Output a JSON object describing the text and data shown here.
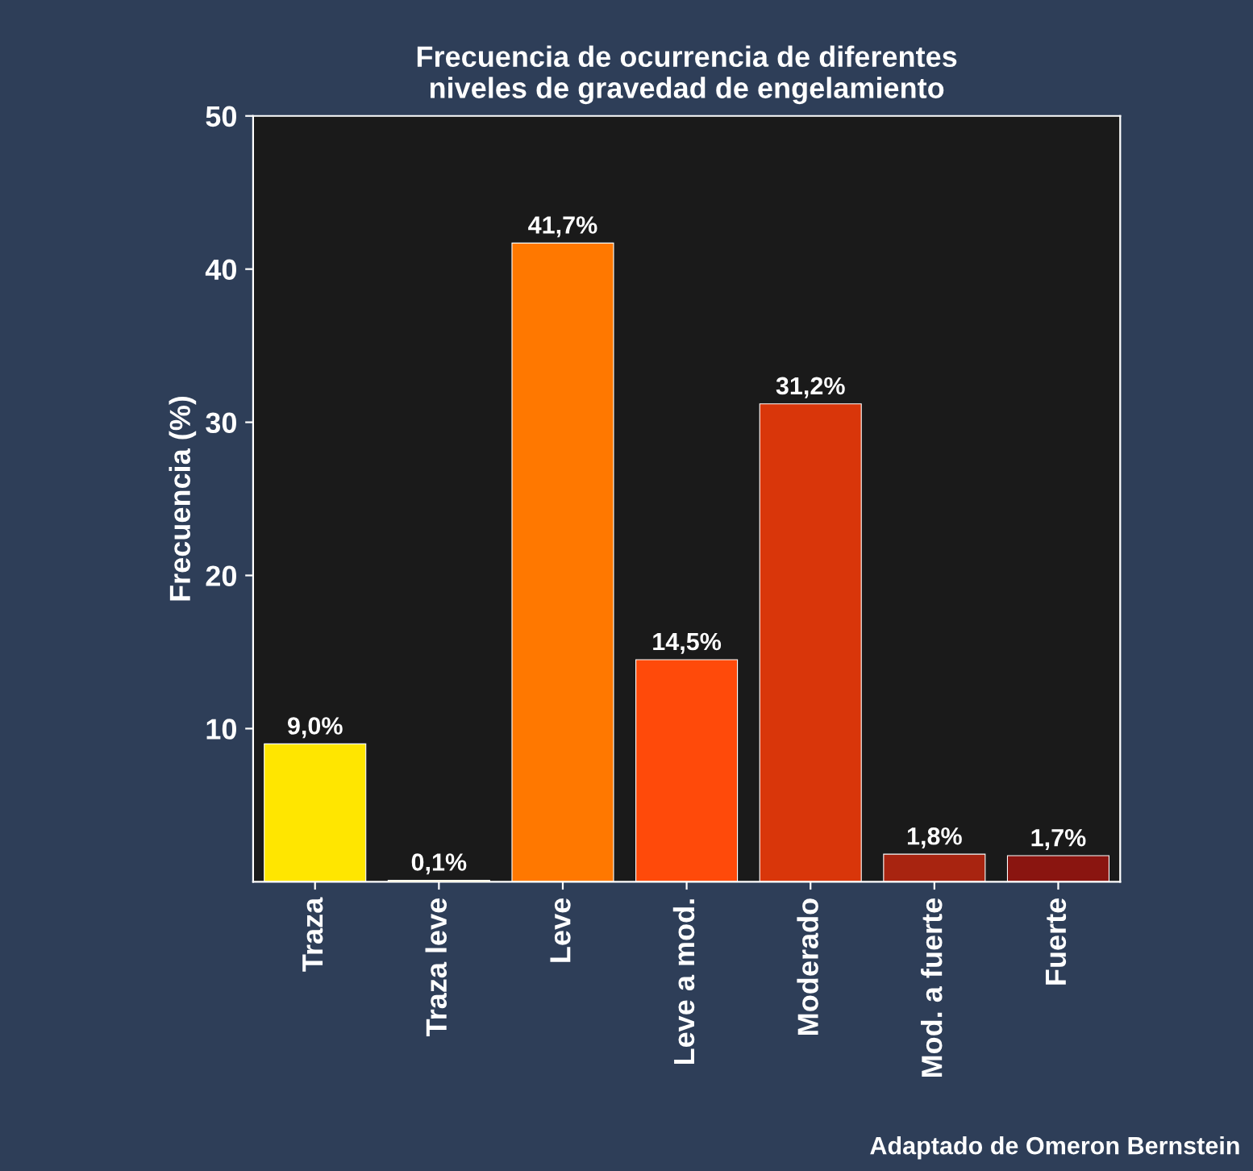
{
  "chart_data": {
    "type": "bar",
    "title": "Frecuencia de ocurrencia de diferentes\nniveles de gravedad de engelamiento",
    "ylabel": "Frecuencia (%)",
    "categories": [
      "Traza",
      "Traza leve",
      "Leve",
      "Leve a mod.",
      "Moderado",
      "Mod. a fuerte",
      "Fuerte"
    ],
    "values": [
      9.0,
      0.1,
      41.7,
      14.5,
      31.2,
      1.8,
      1.7
    ],
    "value_labels": [
      "9,0%",
      "0,1%",
      "41,7%",
      "14,5%",
      "31,2%",
      "1,8%",
      "1,7%"
    ],
    "colors": [
      "#ffe600",
      "#ffa300",
      "#ff7800",
      "#ff4a0a",
      "#d9360a",
      "#a82410",
      "#8a1510"
    ],
    "ylim": [
      0,
      50
    ],
    "yticks": [
      10,
      20,
      30,
      40,
      50
    ],
    "grid": false,
    "legend": false,
    "annotations": [
      "Adaptado de Omeron Bernstein"
    ]
  }
}
